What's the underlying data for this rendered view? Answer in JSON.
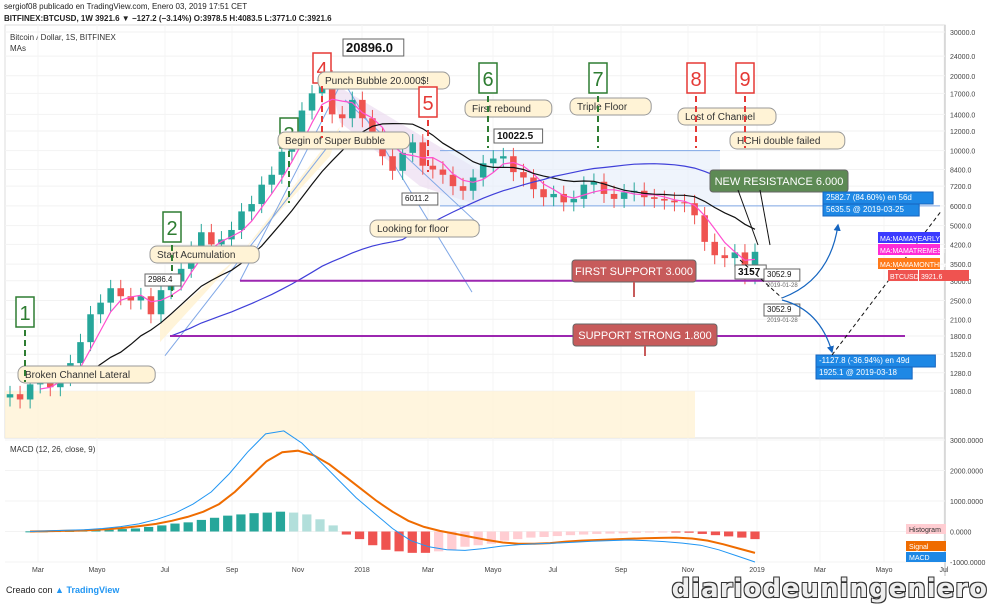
{
  "header": {
    "publisher_line": "sergiof08 publicado en TradingView.com, Enero 03, 2019 17:51 CET",
    "symbol_line": "BITFINEX:BTCUSD, 1W 3921.6 ▼ −127.2 (−3.14%) O:3978.5 H:4083.5 L:3771.0 C:3921.6"
  },
  "pane_title": "Bitcoin / Dollar, 1S, BITFINEX",
  "pane_subtitle": "MAs",
  "chart_data": [
    {
      "type": "candlestick",
      "title": "Bitcoin / Dollar, 1S, BITFINEX",
      "ylog": true,
      "ylim": [
        700,
        32000
      ],
      "x_ticks": [
        "Mar",
        "May",
        "Jul",
        "Sep",
        "Nov",
        "2018",
        "Mar",
        "Mayo",
        "Jul",
        "Sep",
        "Nov",
        "2019",
        "Mar",
        "Mayo",
        "Jul"
      ],
      "y_ticks": [
        1080,
        1280,
        1520,
        1800,
        2100,
        2500,
        3000,
        3500,
        4200,
        5000,
        6000,
        7200,
        8400,
        10000,
        12000,
        14000,
        17000,
        20000,
        24000,
        30000
      ],
      "series": [
        {
          "name": "BTCUSD",
          "values": [
            1050,
            1000,
            1150,
            1220,
            1120,
            1230,
            1400,
            1700,
            2200,
            2450,
            2800,
            2600,
            2500,
            2600,
            2200,
            2750,
            2980,
            3350,
            4000,
            4700,
            4200,
            4400,
            4800,
            5700,
            6100,
            7300,
            8000,
            9900,
            11500,
            14500,
            17000,
            19500,
            14000,
            13500,
            16000,
            13500,
            11500,
            9500,
            8300,
            9800,
            10800,
            8700,
            8400,
            8000,
            7200,
            6900,
            7800,
            8900,
            9300,
            9500,
            8200,
            7800,
            7000,
            6500,
            6700,
            6200,
            6400,
            7300,
            7500,
            6700,
            6400,
            6800,
            6900,
            6500,
            6400,
            6300,
            6200,
            6150,
            5500,
            4300,
            3800,
            3700,
            3900,
            3157,
            3921.6
          ]
        },
        {
          "name": "MA:MAMAYEARLY",
          "values": [
            null
          ]
        },
        {
          "name": "MA:MATREMESTER",
          "values": [
            null
          ]
        },
        {
          "name": "MA:MAMONTHLY",
          "values": [
            null
          ]
        }
      ],
      "price_labels": [
        "2986.4",
        "20896.0",
        "6011.2",
        "10022.5",
        "3157",
        "3052.9",
        "3052.9",
        "2582.7 (84.60%) en 56d",
        "5635.5 @ 2019-03-25",
        "-1127.8 (-36.94%) en 49d",
        "1925.1 @ 2019-03-18"
      ],
      "price_sublabels": [
        "2019-01-28",
        "2019-01-28"
      ],
      "axis_badges": [
        {
          "text": "MA:MAMAYEARLY",
          "color": "#3b3bff"
        },
        {
          "text": "MA:MAMATREMESTER",
          "color": "#ff2bd6"
        },
        {
          "text": "MA:MAMAMONTHLY",
          "color": "#ff7a1a"
        },
        {
          "text": "BTCUSD",
          "color": "#ef5350"
        },
        {
          "text": "3921.6",
          "color": "#ef5350"
        }
      ],
      "annotations": [
        {
          "num": "1",
          "color": "#2e7d32",
          "text": "Broken Channel Lateral"
        },
        {
          "num": "2",
          "color": "#2e7d32",
          "text": "Start Acumulation"
        },
        {
          "num": "3",
          "color": "#2e7d32",
          "text": "Begin of Super Bubble"
        },
        {
          "num": "4",
          "color": "#e53935",
          "text": "Punch Bubble 20.000$!"
        },
        {
          "num": "5",
          "color": "#e53935",
          "text": "Looking for floor"
        },
        {
          "num": "6",
          "color": "#2e7d32",
          "text": "First rebound"
        },
        {
          "num": "7",
          "color": "#2e7d32",
          "text": "Triple Floor"
        },
        {
          "num": "8",
          "color": "#e53935",
          "text": "Lost of Channel"
        },
        {
          "num": "9",
          "color": "#e53935",
          "text": "HCHi double failed"
        }
      ],
      "levels": [
        {
          "name": "NEW RESISTANCE 6.000",
          "value": 6000,
          "color": "#5d8a54"
        },
        {
          "name": "FIRST SUPPORT 3.000",
          "value": 3000,
          "color": "#c75b5b"
        },
        {
          "name": "SUPPORT STRONG 1.800",
          "value": 1800,
          "color": "#c75b5b"
        }
      ]
    },
    {
      "type": "bar",
      "title": "MACD (12, 26, close, 9)",
      "ylim": [
        -1000,
        3000
      ],
      "y_ticks": [
        3000,
        2000,
        1000,
        0,
        -1000
      ],
      "y_tick_labels": [
        "3000.0000",
        "2000.0000",
        "1000.0000",
        "0.0000",
        "-1000.0000"
      ],
      "series": [
        {
          "name": "Histogram",
          "values": [
            5,
            10,
            15,
            20,
            30,
            40,
            60,
            80,
            100,
            150,
            200,
            260,
            300,
            380,
            450,
            520,
            560,
            600,
            620,
            650,
            620,
            560,
            400,
            200,
            -100,
            -250,
            -450,
            -600,
            -650,
            -700,
            -700,
            -650,
            -600,
            -500,
            -450,
            -400,
            -300,
            -250,
            -200,
            -180,
            -150,
            -120,
            -100,
            -80,
            -70,
            -60,
            -40,
            -30,
            -20,
            -30,
            -40,
            -80,
            -120,
            -160,
            -200,
            -250
          ]
        },
        {
          "name": "Signal",
          "values": [
            0,
            10,
            20,
            30,
            50,
            80,
            120,
            180,
            250,
            350,
            480,
            650,
            900,
            1300,
            1800,
            2300,
            2600,
            2650,
            2500,
            2200,
            1800,
            1400,
            1000,
            650,
            350,
            150,
            20,
            -80,
            -180,
            -280,
            -360,
            -400,
            -400,
            -380,
            -330,
            -300,
            -280,
            -260,
            -240,
            -220,
            -210,
            -200,
            -230,
            -300,
            -420,
            -560,
            -700
          ]
        },
        {
          "name": "MACD",
          "values": [
            0,
            20,
            40,
            60,
            100,
            160,
            250,
            400,
            600,
            900,
            1300,
            1900,
            2600,
            3200,
            3300,
            2900,
            2300,
            1700,
            1100,
            600,
            100,
            -300,
            -500,
            -600,
            -620,
            -560,
            -480,
            -430,
            -400,
            -380,
            -350,
            -320,
            -300,
            -280,
            -300,
            -330,
            -380,
            -450,
            -600,
            -800,
            -1000
          ]
        }
      ],
      "legend": [
        "Histogram",
        "Signal",
        "MACD"
      ]
    }
  ],
  "x_axis_labels": [
    "Mar",
    "Mayo",
    "Jul",
    "Sep",
    "Nov",
    "2018",
    "Mar",
    "Mayo",
    "Jul",
    "Sep",
    "Nov",
    "2019",
    "Mar",
    "Mayo",
    "Jul"
  ],
  "footer": {
    "created_with": "Creado con",
    "tradingview": "TradingView"
  },
  "watermark": "diariodeuningeniero",
  "colors": {
    "up": "#26a69a",
    "down": "#ef5350",
    "ma_black": "#111111",
    "ma_blue": "#3f3fd9",
    "ma_pink": "#ff4fcf",
    "support": "#9c27b0"
  }
}
